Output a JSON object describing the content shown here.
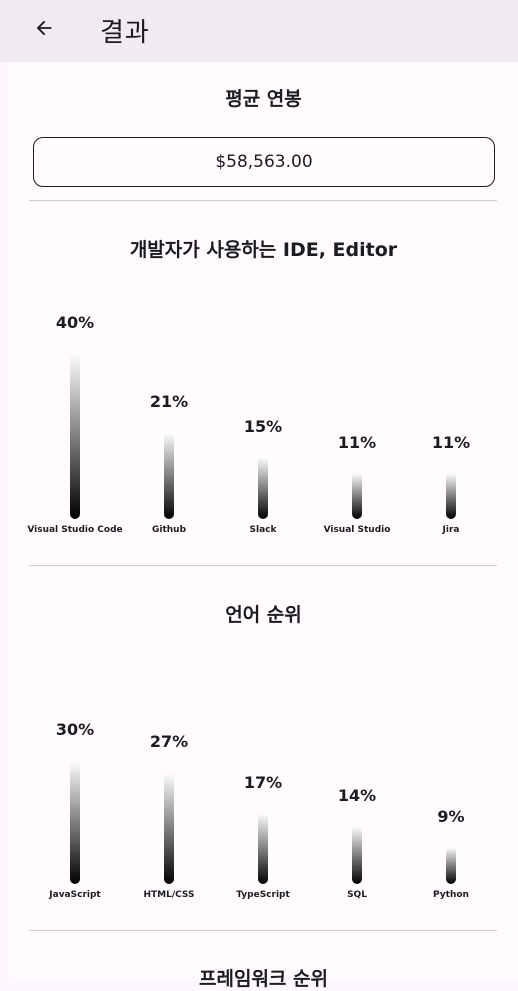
{
  "app_bar": {
    "title": "결과",
    "back_icon": "arrow-left-icon"
  },
  "salary": {
    "title": "평균 연봉",
    "value": "$58,563.00"
  },
  "charts": [
    {
      "title": "개발자가 사용하는 IDE, Editor",
      "items": [
        {
          "label": "Visual Studio Code",
          "percent_label": "40%",
          "percent": 40
        },
        {
          "label": "Github",
          "percent_label": "21%",
          "percent": 21
        },
        {
          "label": "Slack",
          "percent_label": "15%",
          "percent": 15
        },
        {
          "label": "Visual Studio",
          "percent_label": "11%",
          "percent": 11
        },
        {
          "label": "Jira",
          "percent_label": "11%",
          "percent": 11
        }
      ]
    },
    {
      "title": "언어 순위",
      "items": [
        {
          "label": "JavaScript",
          "percent_label": "30%",
          "percent": 30
        },
        {
          "label": "HTML/CSS",
          "percent_label": "27%",
          "percent": 27
        },
        {
          "label": "TypeScript",
          "percent_label": "17%",
          "percent": 17
        },
        {
          "label": "SQL",
          "percent_label": "14%",
          "percent": 14
        },
        {
          "label": "Python",
          "percent_label": "9%",
          "percent": 9
        }
      ]
    },
    {
      "title": "프레임워크 순위",
      "items": []
    }
  ],
  "chart_data": [
    {
      "type": "bar",
      "title": "개발자가 사용하는 IDE, Editor",
      "categories": [
        "Visual Studio Code",
        "Github",
        "Slack",
        "Visual Studio",
        "Jira"
      ],
      "values": [
        40,
        21,
        15,
        11,
        11
      ]
    },
    {
      "type": "bar",
      "title": "언어 순위",
      "categories": [
        "JavaScript",
        "HTML/CSS",
        "TypeScript",
        "SQL",
        "Python"
      ],
      "values": [
        30,
        27,
        17,
        14,
        9
      ]
    }
  ]
}
